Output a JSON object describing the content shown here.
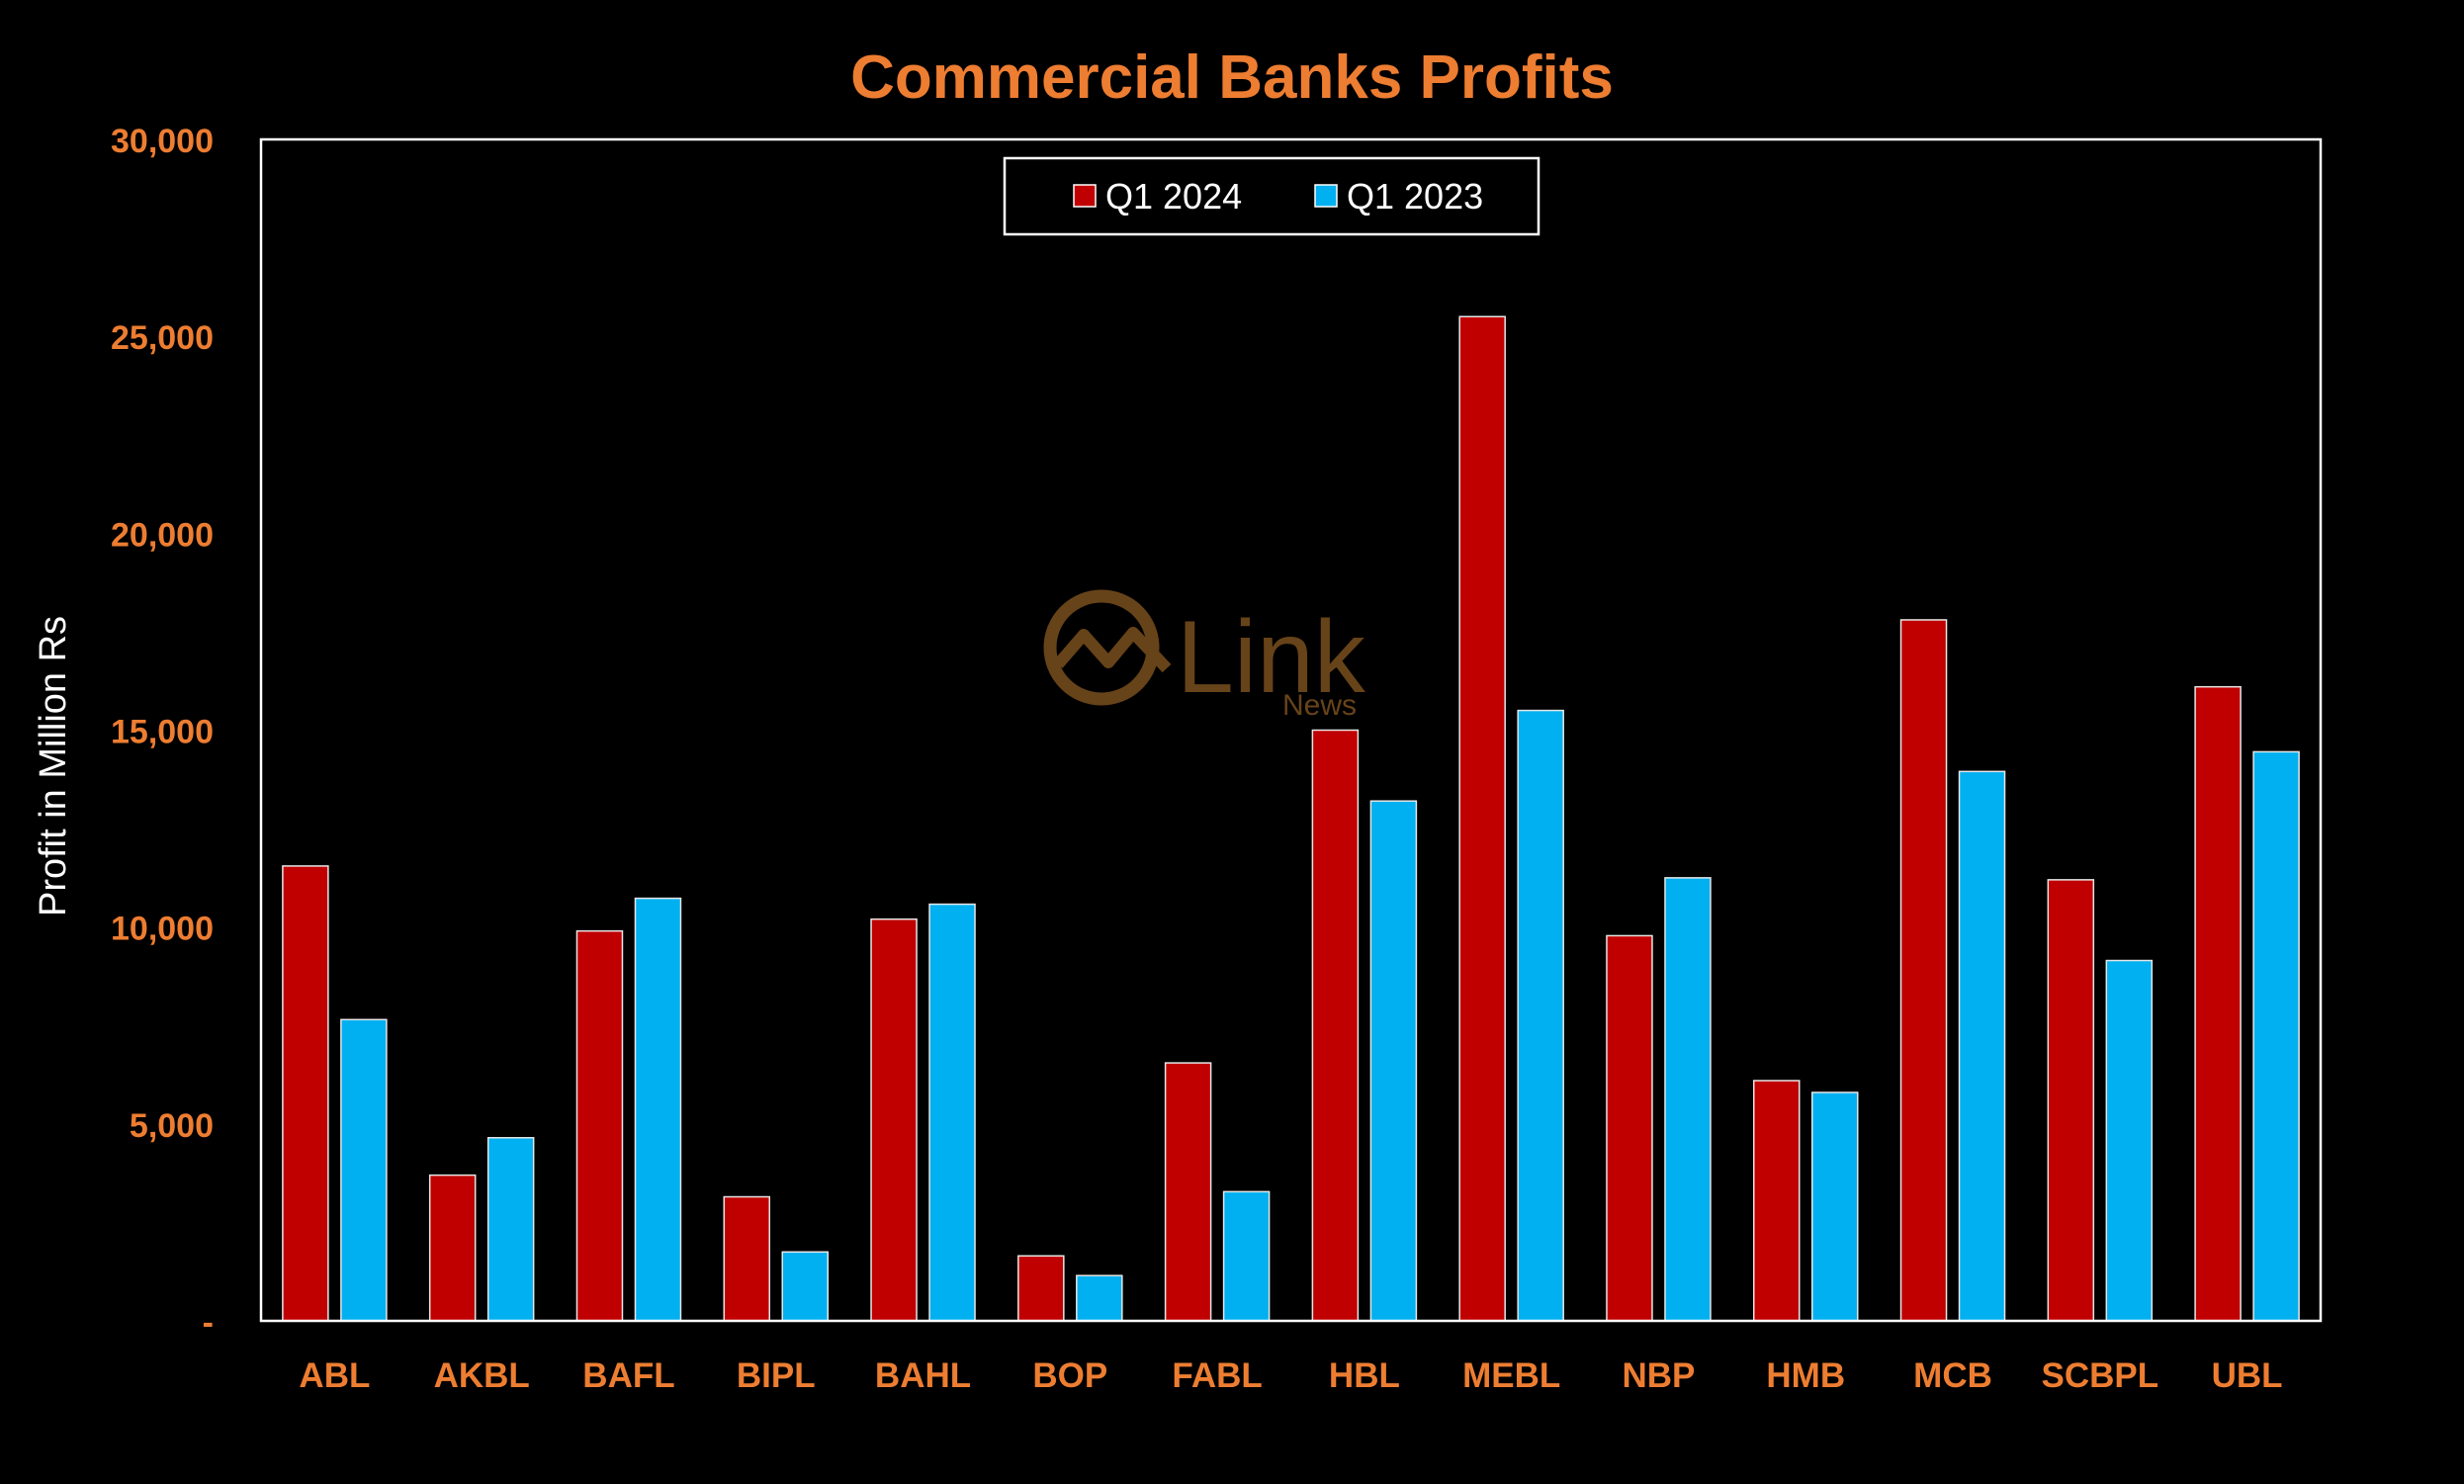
{
  "chart_data": {
    "type": "bar",
    "title": "Commercial Banks Profits",
    "xlabel": "",
    "ylabel": "Profit in Million Rs",
    "ylim": [
      0,
      30000
    ],
    "yticks": [
      0,
      5000,
      10000,
      15000,
      20000,
      25000,
      30000
    ],
    "ytick_labels": [
      "-",
      "5,000",
      "10,000",
      "15,000",
      "20,000",
      "25,000",
      "30,000"
    ],
    "grid": false,
    "legend_position": "top-center",
    "categories": [
      "ABL",
      "AKBL",
      "BAFL",
      "BIPL",
      "BAHL",
      "BOP",
      "FABL",
      "HBL",
      "MEBL",
      "NBP",
      "HMB",
      "MCB",
      "SCBPL",
      "UBL"
    ],
    "series": [
      {
        "name": "Q1 2024",
        "color": "#C00000",
        "values": [
          11550,
          3700,
          9900,
          3150,
          10200,
          1650,
          6550,
          15000,
          25500,
          9780,
          6100,
          17800,
          11200,
          16100
        ]
      },
      {
        "name": "Q1 2023",
        "color": "#00B0F0",
        "values": [
          7650,
          4650,
          10730,
          1750,
          10580,
          1150,
          3280,
          13200,
          15500,
          11250,
          5800,
          13950,
          9150,
          14450
        ]
      }
    ]
  },
  "colors": {
    "background": "#000000",
    "accent": "#ED7D31",
    "axis_frame": "#FFFFFF",
    "watermark": "#7A4F1E"
  },
  "watermark": {
    "logo_word": "Link",
    "logo_sub": "News"
  }
}
